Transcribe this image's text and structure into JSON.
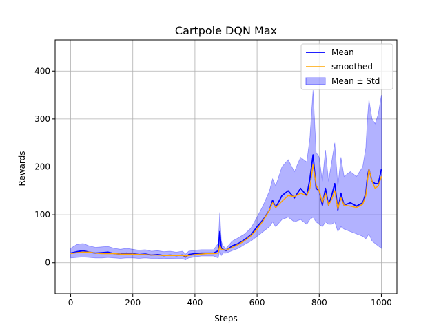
{
  "chart_data": {
    "type": "line",
    "title": "Cartpole DQN Max",
    "xlabel": "Steps",
    "ylabel": "Rewards",
    "xlim": [
      -50,
      1050
    ],
    "ylim": [
      -65,
      465
    ],
    "xticks": [
      0,
      200,
      400,
      600,
      800,
      1000
    ],
    "yticks": [
      0,
      100,
      200,
      300,
      400
    ],
    "grid": true,
    "legend_position": "top-right",
    "colors": {
      "mean": "#0000ff",
      "smoothed": "#ffa500",
      "band": "#0000ff"
    },
    "legend": [
      "Mean",
      "smoothed",
      "Mean ± Std"
    ],
    "x": [
      0,
      20,
      40,
      60,
      80,
      100,
      120,
      140,
      160,
      180,
      200,
      220,
      240,
      260,
      280,
      300,
      320,
      340,
      360,
      370,
      380,
      400,
      420,
      440,
      460,
      475,
      480,
      485,
      490,
      500,
      520,
      540,
      560,
      580,
      600,
      620,
      640,
      650,
      660,
      680,
      700,
      720,
      740,
      760,
      770,
      780,
      790,
      800,
      810,
      820,
      830,
      840,
      850,
      860,
      870,
      880,
      900,
      920,
      940,
      950,
      955,
      960,
      970,
      980,
      990,
      1000
    ],
    "series": [
      {
        "name": "Mean",
        "values": [
          20,
          23,
          25,
          22,
          20,
          21,
          22,
          19,
          18,
          20,
          19,
          17,
          18,
          16,
          17,
          15,
          16,
          15,
          16,
          12,
          17,
          19,
          20,
          20,
          20,
          25,
          65,
          30,
          28,
          25,
          35,
          40,
          48,
          58,
          75,
          90,
          110,
          130,
          115,
          140,
          150,
          135,
          155,
          140,
          175,
          225,
          155,
          150,
          120,
          155,
          120,
          140,
          165,
          110,
          145,
          120,
          125,
          118,
          125,
          145,
          180,
          195,
          170,
          165,
          165,
          195
        ]
      },
      {
        "name": "smoothed",
        "values": [
          19,
          21,
          22,
          22,
          20,
          19,
          19,
          19,
          18,
          18,
          18,
          17,
          17,
          16,
          16,
          15,
          15,
          15,
          15,
          14,
          15,
          17,
          18,
          19,
          19,
          20,
          36,
          28,
          27,
          26,
          32,
          38,
          46,
          56,
          70,
          88,
          110,
          125,
          115,
          128,
          140,
          138,
          145,
          140,
          155,
          205,
          162,
          150,
          125,
          145,
          120,
          132,
          150,
          112,
          135,
          120,
          118,
          115,
          122,
          140,
          170,
          195,
          170,
          155,
          160,
          180
        ]
      }
    ],
    "band_lower": [
      10,
      11,
      12,
      11,
      10,
      10,
      11,
      10,
      9,
      10,
      10,
      9,
      10,
      9,
      9,
      8,
      9,
      8,
      8,
      6,
      10,
      12,
      14,
      14,
      14,
      10,
      25,
      15,
      20,
      20,
      25,
      30,
      38,
      45,
      55,
      65,
      75,
      85,
      75,
      90,
      95,
      85,
      90,
      80,
      90,
      95,
      85,
      80,
      75,
      85,
      80,
      80,
      85,
      65,
      75,
      70,
      65,
      60,
      55,
      50,
      55,
      60,
      45,
      40,
      35,
      30
    ],
    "band_upper": [
      30,
      38,
      40,
      35,
      32,
      33,
      34,
      30,
      28,
      30,
      28,
      26,
      27,
      24,
      25,
      23,
      24,
      22,
      24,
      18,
      24,
      26,
      27,
      27,
      27,
      40,
      105,
      45,
      35,
      30,
      45,
      52,
      60,
      72,
      95,
      120,
      150,
      175,
      160,
      200,
      215,
      190,
      220,
      210,
      260,
      360,
      230,
      220,
      170,
      235,
      170,
      210,
      250,
      160,
      220,
      180,
      190,
      180,
      200,
      240,
      300,
      340,
      300,
      290,
      310,
      350
    ]
  }
}
